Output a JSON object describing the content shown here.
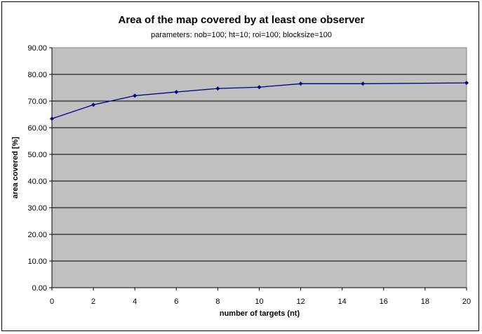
{
  "chart_data": {
    "type": "line",
    "title": "Area of the map covered by at least one observer",
    "subtitle": "parameters: nob=100; ht=10; roi=100; blocksize=100",
    "xlabel": "number of targets (nt)",
    "ylabel": "area covered [%]",
    "xlim": [
      0,
      20
    ],
    "ylim": [
      0,
      90
    ],
    "x_ticks": [
      "0",
      "2",
      "4",
      "6",
      "8",
      "10",
      "12",
      "14",
      "16",
      "18",
      "20"
    ],
    "y_ticks": [
      "0.00",
      "10.00",
      "20.00",
      "30.00",
      "40.00",
      "50.00",
      "60.00",
      "70.00",
      "80.00",
      "90.00"
    ],
    "grid": true,
    "colors": {
      "plot_bg": "#c0c0c0",
      "line": "#000080",
      "grid": "#000000"
    },
    "series": [
      {
        "x": [
          0,
          2,
          4,
          6,
          8,
          10,
          12,
          15,
          20
        ],
        "y": [
          63.4,
          68.6,
          72.0,
          73.4,
          74.7,
          75.2,
          76.5,
          76.5,
          76.8
        ]
      }
    ]
  }
}
